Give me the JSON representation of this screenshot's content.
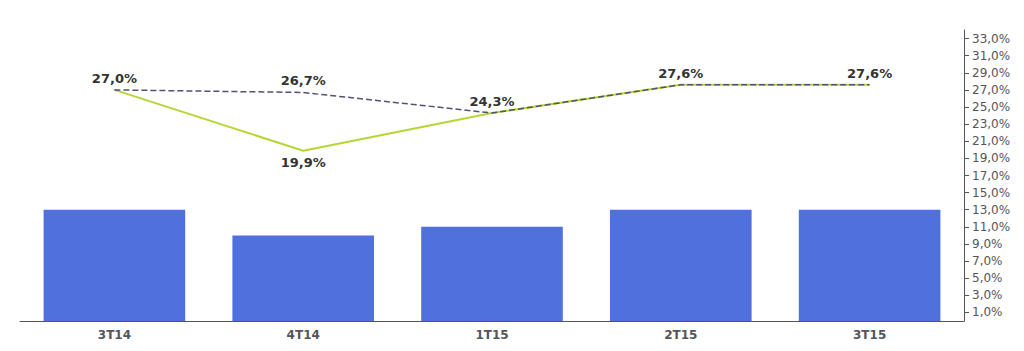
{
  "chart_data": {
    "type": "bar",
    "categories": [
      "3T14",
      "4T14",
      "1T15",
      "2T15",
      "3T15"
    ],
    "series": [
      {
        "type": "bar",
        "values": [
          13.0,
          10.0,
          11.0,
          13.0,
          13.0
        ]
      },
      {
        "type": "line",
        "line_style": "solid",
        "values": [
          27.0,
          19.9,
          24.3,
          27.6,
          27.6
        ],
        "value_labels": [
          "27,0%",
          "19,9%",
          "24,3%",
          "27,6%",
          "27,6%"
        ]
      },
      {
        "type": "line",
        "line_style": "dashed",
        "values": [
          27.0,
          26.7,
          24.3,
          27.6,
          27.6
        ],
        "value_labels": [
          null,
          "26,7%",
          null,
          null,
          null
        ]
      }
    ],
    "ylim": [
      0,
      34
    ],
    "yticks": [
      {
        "value": 1.0,
        "label": "1,0%"
      },
      {
        "value": 3.0,
        "label": "3,0%"
      },
      {
        "value": 5.0,
        "label": "5,0%"
      },
      {
        "value": 7.0,
        "label": "7,0%"
      },
      {
        "value": 9.0,
        "label": "9,0%"
      },
      {
        "value": 11.0,
        "label": "11,0%"
      },
      {
        "value": 13.0,
        "label": "13,0%"
      },
      {
        "value": 15.0,
        "label": "15,0%"
      },
      {
        "value": 17.0,
        "label": "17,0%"
      },
      {
        "value": 19.0,
        "label": "19,0%"
      },
      {
        "value": 21.0,
        "label": "21,0%"
      },
      {
        "value": 23.0,
        "label": "23,0%"
      },
      {
        "value": 25.0,
        "label": "25,0%"
      },
      {
        "value": 27.0,
        "label": "27,0%"
      },
      {
        "value": 29.0,
        "label": "29,0%"
      },
      {
        "value": 31.0,
        "label": "31,0%"
      },
      {
        "value": 33.0,
        "label": "33,0%"
      }
    ],
    "grid": false
  }
}
